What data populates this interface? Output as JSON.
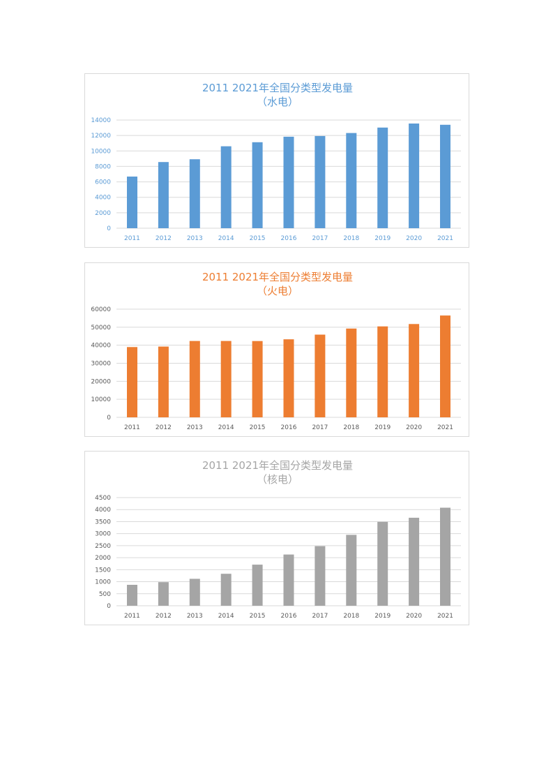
{
  "chart_data": [
    {
      "type": "bar",
      "title": "2011 2021年全国分类型发电量",
      "subtitle": "（水电）",
      "color": "#5b9bd5",
      "categories": [
        "2011",
        "2012",
        "2013",
        "2014",
        "2015",
        "2016",
        "2017",
        "2018",
        "2019",
        "2020",
        "2021"
      ],
      "values": [
        6680,
        8560,
        8920,
        10600,
        11130,
        11840,
        11930,
        12320,
        13020,
        13550,
        13390
      ],
      "yticks": [
        "0",
        "2000",
        "4000",
        "6000",
        "8000",
        "10000",
        "12000",
        "14000"
      ],
      "ylim": [
        0,
        14000
      ],
      "xlabel": "",
      "ylabel": "",
      "grid": true
    },
    {
      "type": "bar",
      "title": "2011 2021年全国分类型发电量",
      "subtitle": "（火电）",
      "color": "#ed7d31",
      "categories": [
        "2011",
        "2012",
        "2013",
        "2014",
        "2015",
        "2016",
        "2017",
        "2018",
        "2019",
        "2020",
        "2021"
      ],
      "values": [
        38970,
        39260,
        42360,
        42340,
        42310,
        43270,
        45880,
        49250,
        50450,
        51770,
        56460
      ],
      "yticks": [
        "0",
        "10000",
        "20000",
        "30000",
        "40000",
        "50000",
        "60000"
      ],
      "ylim": [
        0,
        60000
      ],
      "xlabel": "",
      "ylabel": "",
      "grid": true
    },
    {
      "type": "bar",
      "title": "2011 2021年全国分类型发电量",
      "subtitle": "（核电）",
      "color": "#a5a5a5",
      "categories": [
        "2011",
        "2012",
        "2013",
        "2014",
        "2015",
        "2016",
        "2017",
        "2018",
        "2019",
        "2020",
        "2021"
      ],
      "values": [
        870,
        980,
        1120,
        1330,
        1710,
        2130,
        2480,
        2950,
        3490,
        3660,
        4080
      ],
      "yticks": [
        "0",
        "500",
        "1000",
        "1500",
        "2000",
        "2500",
        "3000",
        "3500",
        "4000",
        "4500"
      ],
      "ylim": [
        0,
        4500
      ],
      "xlabel": "",
      "ylabel": "",
      "grid": true
    }
  ]
}
